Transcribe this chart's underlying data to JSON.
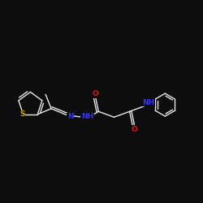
{
  "background": "#0d0d0d",
  "bond_color": "#e8e8e8",
  "atom_colors": {
    "N": "#3333ff",
    "O": "#dd1111",
    "S": "#ccaa00",
    "C": "#e8e8e8"
  },
  "figsize": [
    2.5,
    2.5
  ],
  "dpi": 100
}
